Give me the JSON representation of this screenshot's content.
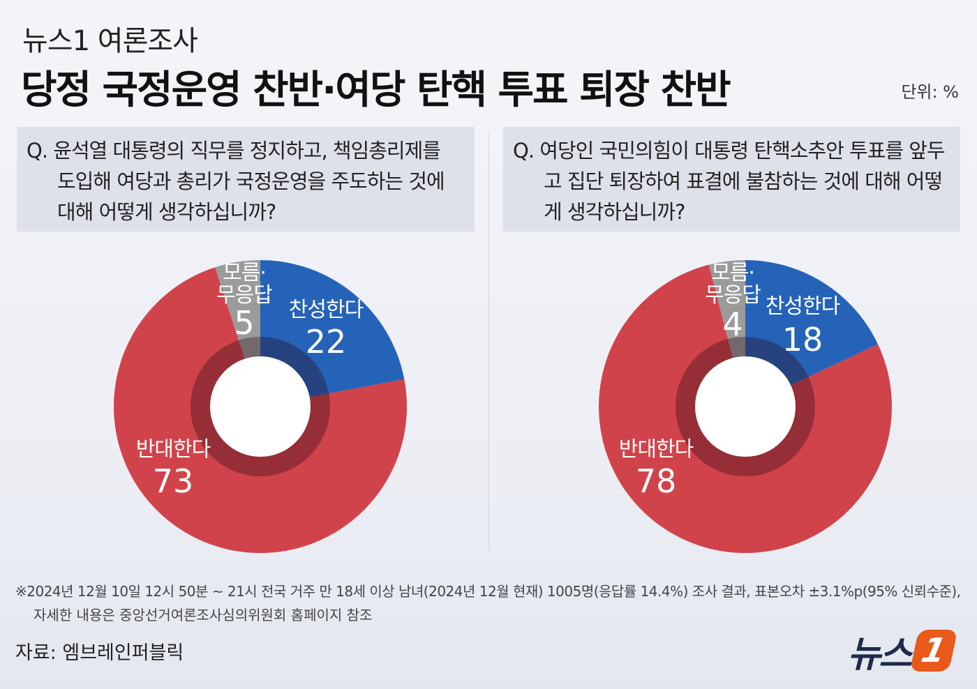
{
  "kicker": "뉴스1 여론조사",
  "title": "당정 국정운영 찬반·여당 탄핵 투표 퇴장 찬반",
  "unit": "단위: %",
  "chart_data": [
    {
      "type": "pie",
      "question": "Q. 윤석열 대통령의 직무를 정지하고, 책임총리제를 도입해 여당과 총리가 국정운영을 주도하는 것에 대해 어떻게 생각하십니까?",
      "categories": [
        "찬성한다",
        "반대한다",
        "모름·\n무응답"
      ],
      "values": [
        22,
        73,
        5
      ],
      "colors": [
        "#2563b8",
        "#d1434a",
        "#9b9b9b"
      ]
    },
    {
      "type": "pie",
      "question": "Q. 여당인 국민의힘이 대통령 탄핵소추안 투표를 앞두고 집단 퇴장하여 표결에 불참하는 것에 대해 어떻게 생각하십니까?",
      "categories": [
        "찬성한다",
        "반대한다",
        "모름·\n무응답"
      ],
      "values": [
        18,
        78,
        4
      ],
      "colors": [
        "#2563b8",
        "#d1434a",
        "#9b9b9b"
      ]
    }
  ],
  "notes": [
    "※2024년 12월 10일 12시 50분 ~ 21시 전국 거주 만 18세 이상 남녀(2024년 12월 현재) 1005명(응답률 14.4%) 조사 결과, 표본오차 ±3.1%p(95% 신뢰수준),",
    "자세한 내용은 중앙선거여론조사심의위원회 홈페이지 참조"
  ],
  "source": "자료: 엠브레인퍼블릭",
  "logo": {
    "text": "뉴스",
    "badge": "1"
  }
}
